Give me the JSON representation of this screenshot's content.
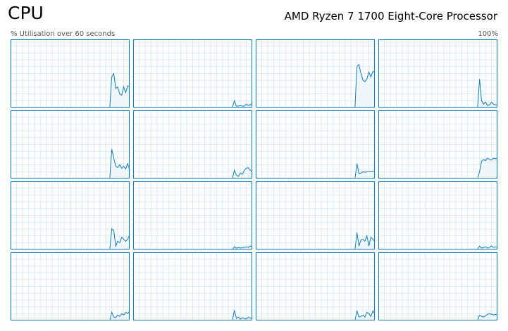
{
  "header": {
    "title": "CPU",
    "processor": "AMD Ryzen 7 1700 Eight-Core Processor",
    "y_label": "% Utilisation over 60 seconds",
    "y_max_label": "100%"
  },
  "chart_data": [
    {
      "type": "line",
      "color": "#117dbb",
      "xlim": [
        0,
        60
      ],
      "ylim": [
        0,
        100
      ],
      "xticks": [
        0,
        3,
        6,
        9,
        12,
        15,
        18,
        21,
        24,
        27,
        30,
        33,
        36,
        39,
        42,
        45,
        48,
        51,
        54,
        57,
        60
      ],
      "yticks": [
        0,
        10,
        20,
        30,
        40,
        50,
        60,
        70,
        80,
        90,
        100
      ],
      "x": [
        50,
        51,
        52,
        53,
        54,
        55,
        56,
        57,
        58,
        59,
        60
      ],
      "values": [
        0,
        45,
        50,
        28,
        30,
        20,
        18,
        30,
        22,
        32,
        30
      ]
    },
    {
      "type": "line",
      "color": "#117dbb",
      "xlim": [
        0,
        60
      ],
      "ylim": [
        0,
        100
      ],
      "xticks": [
        0,
        3,
        6,
        9,
        12,
        15,
        18,
        21,
        24,
        27,
        30,
        33,
        36,
        39,
        42,
        45,
        48,
        51,
        54,
        57,
        60
      ],
      "yticks": [
        0,
        10,
        20,
        30,
        40,
        50,
        60,
        70,
        80,
        90,
        100
      ],
      "x": [
        50,
        51,
        52,
        53,
        54,
        55,
        56,
        57,
        58,
        59,
        60
      ],
      "values": [
        0,
        10,
        2,
        2,
        3,
        2,
        2,
        5,
        3,
        4,
        6
      ]
    },
    {
      "type": "line",
      "color": "#117dbb",
      "xlim": [
        0,
        60
      ],
      "ylim": [
        0,
        100
      ],
      "xticks": [
        0,
        3,
        6,
        9,
        12,
        15,
        18,
        21,
        24,
        27,
        30,
        33,
        36,
        39,
        42,
        45,
        48,
        51,
        54,
        57,
        60
      ],
      "yticks": [
        0,
        10,
        20,
        30,
        40,
        50,
        60,
        70,
        80,
        90,
        100
      ],
      "x": [
        50,
        51,
        52,
        53,
        54,
        55,
        56,
        57,
        58,
        59,
        60
      ],
      "values": [
        0,
        60,
        63,
        50,
        40,
        38,
        42,
        52,
        45,
        53,
        52
      ]
    },
    {
      "type": "line",
      "color": "#117dbb",
      "xlim": [
        0,
        60
      ],
      "ylim": [
        0,
        100
      ],
      "xticks": [
        0,
        3,
        6,
        9,
        12,
        15,
        18,
        21,
        24,
        27,
        30,
        33,
        36,
        39,
        42,
        45,
        48,
        51,
        54,
        57,
        60
      ],
      "yticks": [
        0,
        10,
        20,
        30,
        40,
        50,
        60,
        70,
        80,
        90,
        100
      ],
      "x": [
        50,
        51,
        52,
        53,
        54,
        55,
        56,
        57,
        58,
        59,
        60
      ],
      "values": [
        0,
        42,
        10,
        5,
        8,
        3,
        4,
        8,
        5,
        4,
        3
      ]
    },
    {
      "type": "line",
      "color": "#117dbb",
      "xlim": [
        0,
        60
      ],
      "ylim": [
        0,
        100
      ],
      "xticks": [
        0,
        3,
        6,
        9,
        12,
        15,
        18,
        21,
        24,
        27,
        30,
        33,
        36,
        39,
        42,
        45,
        48,
        51,
        54,
        57,
        60
      ],
      "yticks": [
        0,
        10,
        20,
        30,
        40,
        50,
        60,
        70,
        80,
        90,
        100
      ],
      "x": [
        50,
        51,
        52,
        53,
        54,
        55,
        56,
        57,
        58,
        59,
        60
      ],
      "values": [
        0,
        43,
        30,
        18,
        16,
        20,
        15,
        18,
        14,
        22,
        12
      ]
    },
    {
      "type": "line",
      "color": "#117dbb",
      "xlim": [
        0,
        60
      ],
      "ylim": [
        0,
        100
      ],
      "xticks": [
        0,
        3,
        6,
        9,
        12,
        15,
        18,
        21,
        24,
        27,
        30,
        33,
        36,
        39,
        42,
        45,
        48,
        51,
        54,
        57,
        60
      ],
      "yticks": [
        0,
        10,
        20,
        30,
        40,
        50,
        60,
        70,
        80,
        90,
        100
      ],
      "x": [
        50,
        51,
        52,
        53,
        54,
        55,
        56,
        57,
        58,
        59,
        60
      ],
      "values": [
        0,
        12,
        5,
        3,
        8,
        6,
        12,
        15,
        16,
        12,
        10
      ]
    },
    {
      "type": "line",
      "color": "#117dbb",
      "xlim": [
        0,
        60
      ],
      "ylim": [
        0,
        100
      ],
      "xticks": [
        0,
        3,
        6,
        9,
        12,
        15,
        18,
        21,
        24,
        27,
        30,
        33,
        36,
        39,
        42,
        45,
        48,
        51,
        54,
        57,
        60
      ],
      "yticks": [
        0,
        10,
        20,
        30,
        40,
        50,
        60,
        70,
        80,
        90,
        100
      ],
      "x": [
        50,
        51,
        52,
        53,
        54,
        55,
        56,
        57,
        58,
        59,
        60
      ],
      "values": [
        0,
        22,
        7,
        8,
        10,
        9,
        10,
        10,
        10,
        11,
        10
      ]
    },
    {
      "type": "line",
      "color": "#117dbb",
      "xlim": [
        0,
        60
      ],
      "ylim": [
        0,
        100
      ],
      "xticks": [
        0,
        3,
        6,
        9,
        12,
        15,
        18,
        21,
        24,
        27,
        30,
        33,
        36,
        39,
        42,
        45,
        48,
        51,
        54,
        57,
        60
      ],
      "yticks": [
        0,
        10,
        20,
        30,
        40,
        50,
        60,
        70,
        80,
        90,
        100
      ],
      "x": [
        50,
        51,
        52,
        53,
        54,
        55,
        56,
        57,
        58,
        59,
        60
      ],
      "values": [
        0,
        10,
        25,
        28,
        26,
        30,
        28,
        27,
        30,
        29,
        30
      ]
    },
    {
      "type": "line",
      "color": "#117dbb",
      "xlim": [
        0,
        60
      ],
      "ylim": [
        0,
        100
      ],
      "xticks": [
        0,
        3,
        6,
        9,
        12,
        15,
        18,
        21,
        24,
        27,
        30,
        33,
        36,
        39,
        42,
        45,
        48,
        51,
        54,
        57,
        60
      ],
      "yticks": [
        0,
        10,
        20,
        30,
        40,
        50,
        60,
        70,
        80,
        90,
        100
      ],
      "x": [
        50,
        51,
        52,
        53,
        54,
        55,
        56,
        57,
        58,
        59,
        60
      ],
      "values": [
        0,
        30,
        28,
        5,
        12,
        10,
        18,
        15,
        12,
        15,
        22
      ]
    },
    {
      "type": "line",
      "color": "#117dbb",
      "xlim": [
        0,
        60
      ],
      "ylim": [
        0,
        100
      ],
      "xticks": [
        0,
        3,
        6,
        9,
        12,
        15,
        18,
        21,
        24,
        27,
        30,
        33,
        36,
        39,
        42,
        45,
        48,
        51,
        54,
        57,
        60
      ],
      "yticks": [
        0,
        10,
        20,
        30,
        40,
        50,
        60,
        70,
        80,
        90,
        100
      ],
      "x": [
        50,
        51,
        52,
        53,
        54,
        55,
        56,
        57,
        58,
        59,
        60
      ],
      "values": [
        0,
        4,
        2,
        3,
        2,
        3,
        3,
        4,
        3,
        5,
        4
      ]
    },
    {
      "type": "line",
      "color": "#117dbb",
      "xlim": [
        0,
        60
      ],
      "ylim": [
        0,
        100
      ],
      "xticks": [
        0,
        3,
        6,
        9,
        12,
        15,
        18,
        21,
        24,
        27,
        30,
        33,
        36,
        39,
        42,
        45,
        48,
        51,
        54,
        57,
        60
      ],
      "yticks": [
        0,
        10,
        20,
        30,
        40,
        50,
        60,
        70,
        80,
        90,
        100
      ],
      "x": [
        50,
        51,
        52,
        53,
        54,
        55,
        56,
        57,
        58,
        59,
        60
      ],
      "values": [
        0,
        25,
        5,
        14,
        15,
        12,
        20,
        5,
        18,
        15,
        12
      ]
    },
    {
      "type": "line",
      "color": "#117dbb",
      "xlim": [
        0,
        60
      ],
      "ylim": [
        0,
        100
      ],
      "xticks": [
        0,
        3,
        6,
        9,
        12,
        15,
        18,
        21,
        24,
        27,
        30,
        33,
        36,
        39,
        42,
        45,
        48,
        51,
        54,
        57,
        60
      ],
      "yticks": [
        0,
        10,
        20,
        30,
        40,
        50,
        60,
        70,
        80,
        90,
        100
      ],
      "x": [
        50,
        51,
        52,
        53,
        54,
        55,
        56,
        57,
        58,
        59,
        60
      ],
      "values": [
        0,
        5,
        2,
        3,
        4,
        2,
        3,
        5,
        3,
        4,
        3
      ]
    },
    {
      "type": "line",
      "color": "#117dbb",
      "xlim": [
        0,
        60
      ],
      "ylim": [
        0,
        100
      ],
      "xticks": [
        0,
        3,
        6,
        9,
        12,
        15,
        18,
        21,
        24,
        27,
        30,
        33,
        36,
        39,
        42,
        45,
        48,
        51,
        54,
        57,
        60
      ],
      "yticks": [
        0,
        10,
        20,
        30,
        40,
        50,
        60,
        70,
        80,
        90,
        100
      ],
      "x": [
        50,
        51,
        52,
        53,
        54,
        55,
        56,
        57,
        58,
        59,
        60
      ],
      "values": [
        0,
        12,
        5,
        4,
        8,
        6,
        10,
        8,
        12,
        10,
        13
      ]
    },
    {
      "type": "line",
      "color": "#117dbb",
      "xlim": [
        0,
        60
      ],
      "ylim": [
        0,
        100
      ],
      "xticks": [
        0,
        3,
        6,
        9,
        12,
        15,
        18,
        21,
        24,
        27,
        30,
        33,
        36,
        39,
        42,
        45,
        48,
        51,
        54,
        57,
        60
      ],
      "yticks": [
        0,
        10,
        20,
        30,
        40,
        50,
        60,
        70,
        80,
        90,
        100
      ],
      "x": [
        50,
        51,
        52,
        53,
        54,
        55,
        56,
        57,
        58,
        59,
        60
      ],
      "values": [
        0,
        15,
        3,
        5,
        2,
        4,
        3,
        2,
        5,
        3,
        4
      ]
    },
    {
      "type": "line",
      "color": "#117dbb",
      "xlim": [
        0,
        60
      ],
      "ylim": [
        0,
        100
      ],
      "xticks": [
        0,
        3,
        6,
        9,
        12,
        15,
        18,
        21,
        24,
        27,
        30,
        33,
        36,
        39,
        42,
        45,
        48,
        51,
        54,
        57,
        60
      ],
      "yticks": [
        0,
        10,
        20,
        30,
        40,
        50,
        60,
        70,
        80,
        90,
        100
      ],
      "x": [
        50,
        51,
        52,
        53,
        54,
        55,
        56,
        57,
        58,
        59,
        60
      ],
      "values": [
        0,
        14,
        5,
        6,
        8,
        5,
        12,
        10,
        6,
        14,
        10
      ]
    },
    {
      "type": "line",
      "color": "#117dbb",
      "xlim": [
        0,
        60
      ],
      "ylim": [
        0,
        100
      ],
      "xticks": [
        0,
        3,
        6,
        9,
        12,
        15,
        18,
        21,
        24,
        27,
        30,
        33,
        36,
        39,
        42,
        45,
        48,
        51,
        54,
        57,
        60
      ],
      "yticks": [
        0,
        10,
        20,
        30,
        40,
        50,
        60,
        70,
        80,
        90,
        100
      ],
      "x": [
        50,
        51,
        52,
        53,
        54,
        55,
        56,
        57,
        58,
        59,
        60
      ],
      "values": [
        0,
        8,
        6,
        5,
        7,
        9,
        10,
        9,
        8,
        9,
        8
      ]
    }
  ]
}
